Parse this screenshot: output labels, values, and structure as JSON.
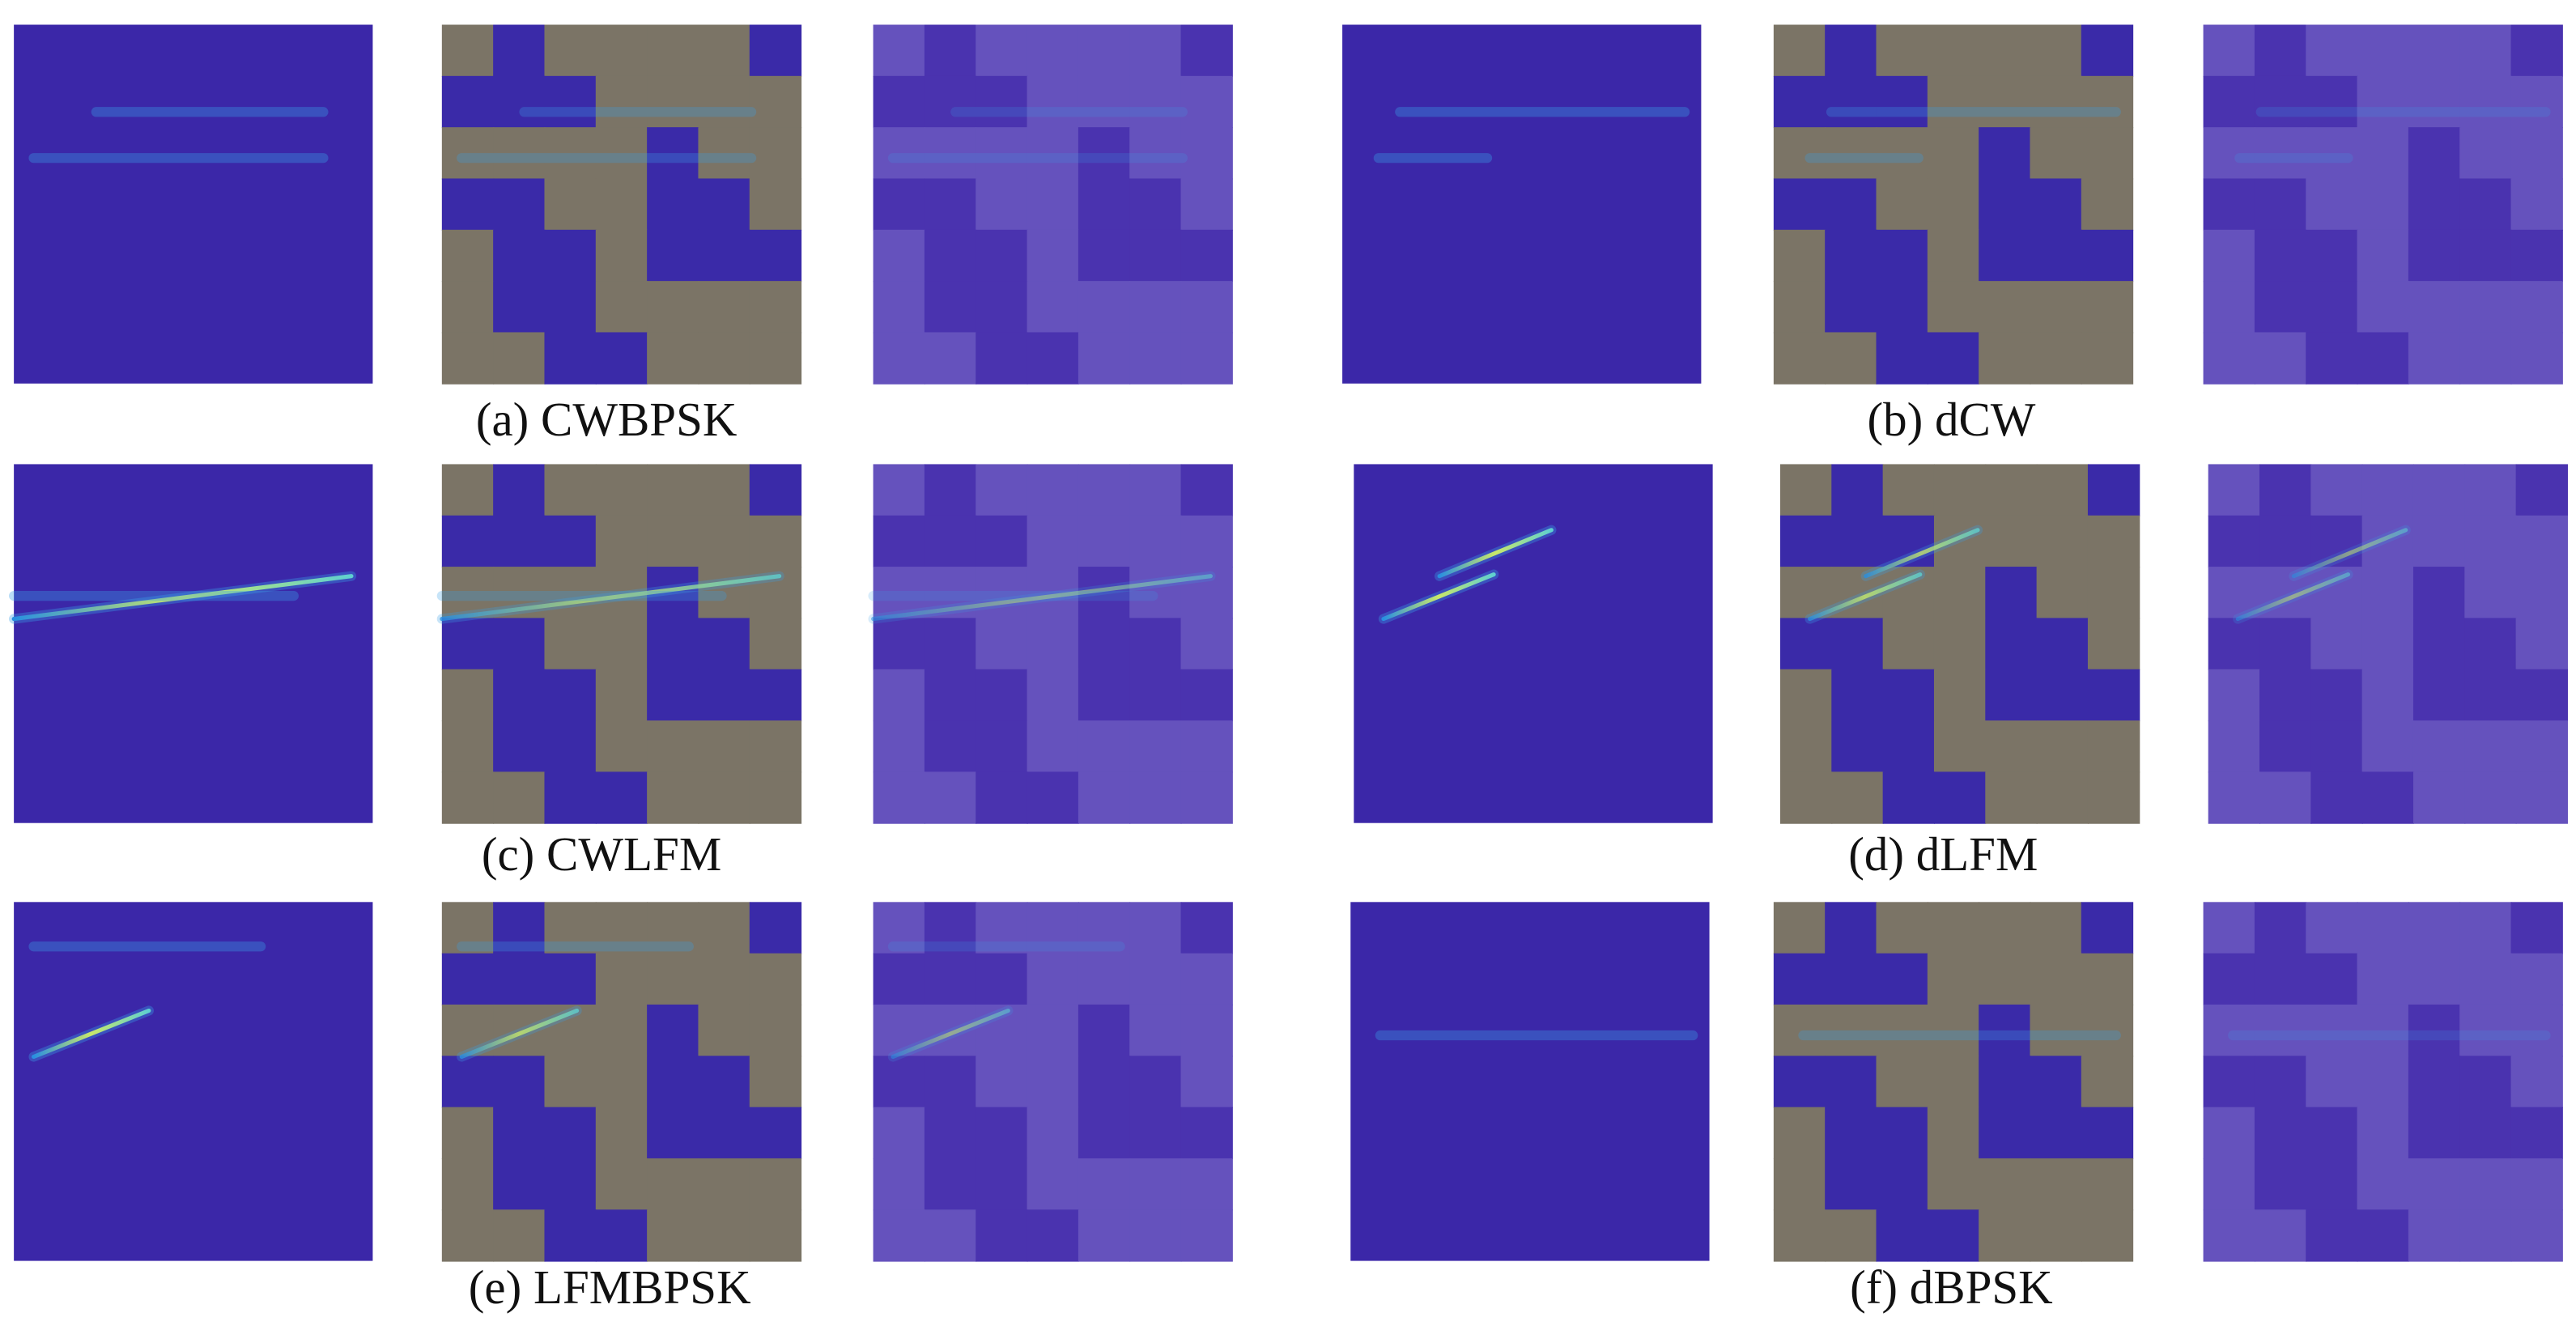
{
  "captions": [
    "(a)  CWBPSK",
    "(b)  dCW",
    "(c)  CWLFM",
    "(d)  dLFM",
    "(e)  LFMBPSK",
    "(f)  dBPSK"
  ]
}
